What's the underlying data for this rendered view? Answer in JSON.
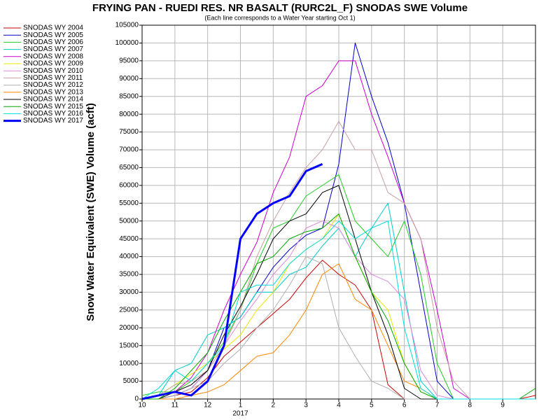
{
  "chart_data": {
    "type": "line",
    "title": "FRYING PAN - RUEDI RES. NR BASALT (RURC2L_F) SNODAS SWE Volume",
    "subtitle": "(Each line corresponds to a Water Year starting Oct 1)",
    "y_label": "Snow Water Equivalent (SWE) Volume (acft)",
    "year_label": "2017",
    "x": [
      0,
      0.5,
      1,
      1.5,
      2,
      2.5,
      3,
      3.5,
      4,
      4.5,
      5,
      5.5,
      6,
      6.5,
      7,
      7.5,
      8,
      8.5,
      9,
      9.5,
      10,
      10.5,
      11,
      11.5,
      12
    ],
    "xlim": [
      0,
      12
    ],
    "xticks": [
      {
        "value": 0,
        "label": "10"
      },
      {
        "value": 1,
        "label": "11"
      },
      {
        "value": 2,
        "label": "12"
      },
      {
        "value": 3,
        "label": "1"
      },
      {
        "value": 4,
        "label": "2"
      },
      {
        "value": 5,
        "label": "3"
      },
      {
        "value": 6,
        "label": "4"
      },
      {
        "value": 7,
        "label": "5"
      },
      {
        "value": 8,
        "label": "6"
      },
      {
        "value": 9,
        "label": "7"
      },
      {
        "value": 10,
        "label": "8"
      },
      {
        "value": 11,
        "label": "9"
      }
    ],
    "ylim": [
      0,
      105000
    ],
    "yticks": [
      0,
      5000,
      10000,
      15000,
      20000,
      25000,
      30000,
      35000,
      40000,
      45000,
      50000,
      55000,
      60000,
      65000,
      70000,
      75000,
      80000,
      85000,
      90000,
      95000,
      100000,
      105000
    ],
    "grid": true,
    "legend": "top-left",
    "series": [
      {
        "name": "SNODAS WY 2004",
        "color": "#cc0000",
        "values": [
          0,
          0,
          1000,
          2000,
          6000,
          12000,
          16000,
          20000,
          24000,
          28000,
          34000,
          39000,
          35000,
          32000,
          25000,
          4000,
          0,
          0,
          0,
          0,
          0,
          0,
          0,
          0,
          1000
        ]
      },
      {
        "name": "SNODAS WY 2005",
        "color": "#0000cc",
        "values": [
          0,
          0,
          1000,
          3000,
          8000,
          20000,
          23000,
          30000,
          37000,
          42000,
          46000,
          48000,
          66000,
          100000,
          85000,
          72000,
          55000,
          30000,
          5000,
          0,
          0,
          0,
          0,
          0,
          0
        ]
      },
      {
        "name": "SNODAS WY 2006",
        "color": "#22cc22",
        "values": [
          1000,
          2000,
          2000,
          5000,
          10000,
          16000,
          25000,
          38000,
          48000,
          50000,
          57000,
          60000,
          63000,
          50000,
          45000,
          40000,
          50000,
          35000,
          10000,
          0,
          0,
          0,
          0,
          0,
          0
        ]
      },
      {
        "name": "SNODAS WY 2007",
        "color": "#00cccc",
        "values": [
          0,
          1000,
          8000,
          10000,
          18000,
          20000,
          23000,
          30000,
          30000,
          35000,
          37000,
          43000,
          48000,
          40000,
          48000,
          55000,
          30000,
          5000,
          0,
          0,
          0,
          0,
          0,
          0,
          0
        ]
      },
      {
        "name": "SNODAS WY 2008",
        "color": "#cc00cc",
        "values": [
          0,
          1000,
          2000,
          6000,
          13000,
          25000,
          35000,
          44000,
          58000,
          68000,
          85000,
          88000,
          95000,
          95000,
          80000,
          68000,
          55000,
          45000,
          25000,
          3000,
          0,
          0,
          0,
          0,
          0
        ]
      },
      {
        "name": "SNODAS WY 2009",
        "color": "#e8e800",
        "values": [
          0,
          1000,
          4000,
          7000,
          10000,
          14000,
          18000,
          25000,
          30000,
          38000,
          42000,
          45000,
          52000,
          40000,
          30000,
          25000,
          10000,
          2000,
          0,
          0,
          0,
          0,
          0,
          0,
          0
        ]
      },
      {
        "name": "SNODAS WY 2010",
        "color": "#dd88dd",
        "values": [
          0,
          0,
          1000,
          3000,
          8000,
          15000,
          22000,
          28000,
          35000,
          40000,
          48000,
          50000,
          48000,
          40000,
          35000,
          33000,
          28000,
          8000,
          1000,
          0,
          0,
          0,
          0,
          0,
          0
        ]
      },
      {
        "name": "SNODAS WY 2011",
        "color": "#c8a0a0",
        "values": [
          0,
          1000,
          4000,
          5000,
          8000,
          15000,
          25000,
          40000,
          50000,
          58000,
          65000,
          70000,
          78000,
          70000,
          70000,
          58000,
          55000,
          45000,
          20000,
          5000,
          0,
          0,
          0,
          0,
          0
        ]
      },
      {
        "name": "SNODAS WY 2012",
        "color": "#b0b0b0",
        "values": [
          0,
          0,
          1000,
          3000,
          5000,
          10000,
          14000,
          20000,
          25000,
          32000,
          40000,
          38000,
          20000,
          12000,
          5000,
          3000,
          0,
          0,
          0,
          0,
          0,
          0,
          0,
          0,
          0
        ]
      },
      {
        "name": "SNODAS WY 2013",
        "color": "#ff8800",
        "values": [
          0,
          0,
          0,
          1000,
          2000,
          4000,
          8000,
          12000,
          13000,
          18000,
          25000,
          35000,
          38000,
          28000,
          25000,
          15000,
          5000,
          3000,
          0,
          0,
          0,
          0,
          0,
          0,
          0
        ]
      },
      {
        "name": "SNODAS WY 2014",
        "color": "#000000",
        "values": [
          0,
          0,
          2000,
          4000,
          8000,
          18000,
          26000,
          35000,
          45000,
          50000,
          52000,
          58000,
          60000,
          45000,
          30000,
          18000,
          3000,
          0,
          0,
          0,
          0,
          0,
          0,
          0,
          0
        ]
      },
      {
        "name": "SNODAS WY 2015",
        "color": "#00aa00",
        "values": [
          0,
          0,
          3000,
          8000,
          13000,
          22000,
          30000,
          38000,
          40000,
          45000,
          47000,
          48000,
          52000,
          40000,
          30000,
          22000,
          10000,
          2000,
          0,
          0,
          0,
          0,
          0,
          0,
          3000
        ]
      },
      {
        "name": "SNODAS WY 2016",
        "color": "#00dddd",
        "values": [
          0,
          3000,
          8000,
          5000,
          10000,
          15000,
          30000,
          32000,
          32000,
          38000,
          42000,
          45000,
          50000,
          45000,
          48000,
          50000,
          20000,
          3000,
          0,
          0,
          0,
          0,
          0,
          0,
          0
        ]
      },
      {
        "name": "SNODAS WY 2017",
        "color": "#0000ff",
        "width": 3,
        "values": [
          0,
          1000,
          2000,
          1000,
          5000,
          15000,
          45000,
          52000,
          55000,
          57000,
          64000,
          66000,
          null,
          null,
          null,
          null,
          null,
          null,
          null,
          null,
          null,
          null,
          null,
          null,
          null
        ]
      }
    ]
  }
}
